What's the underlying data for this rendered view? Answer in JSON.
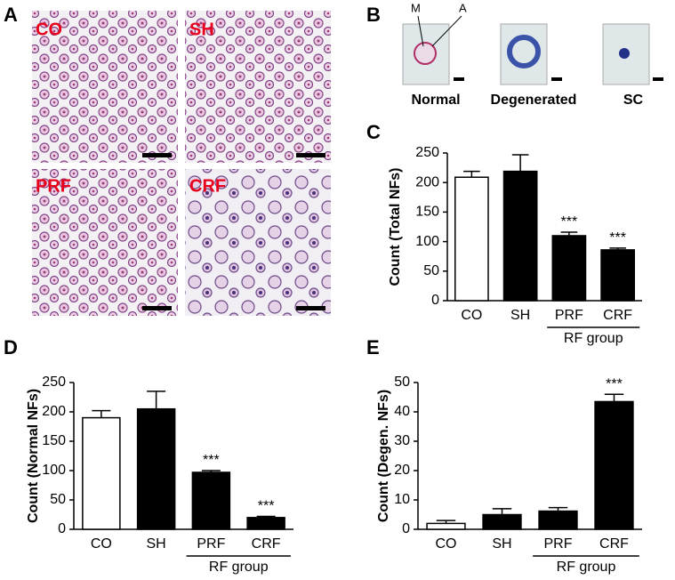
{
  "panel_a": {
    "letter": "A",
    "labels": [
      "CO",
      "SH",
      "PRF",
      "CRF"
    ]
  },
  "panel_b": {
    "letter": "B",
    "pointers": [
      "M",
      "A"
    ],
    "captions": [
      "Normal",
      "Degenerated",
      "SC"
    ]
  },
  "chart_data": [
    {
      "type": "bar",
      "letter": "C",
      "y_label": "Count (Total NFs)",
      "categories": [
        "CO",
        "SH",
        "PRF",
        "CRF"
      ],
      "values": [
        209,
        219,
        110,
        86
      ],
      "errors": [
        10,
        28,
        6,
        3
      ],
      "annotations": [
        null,
        null,
        "***",
        "***"
      ],
      "colors": [
        "#ffffff",
        "#000000",
        "#000000",
        "#000000"
      ],
      "group_label": "RF group",
      "ylim": [
        0,
        250
      ],
      "yticks": [
        0,
        50,
        100,
        150,
        200,
        250
      ]
    },
    {
      "type": "bar",
      "letter": "D",
      "y_label": "Count (Normal NFs)",
      "categories": [
        "CO",
        "SH",
        "PRF",
        "CRF"
      ],
      "values": [
        190,
        205,
        97,
        20
      ],
      "errors": [
        12,
        30,
        3,
        2
      ],
      "annotations": [
        null,
        null,
        "***",
        "***"
      ],
      "colors": [
        "#ffffff",
        "#000000",
        "#000000",
        "#000000"
      ],
      "group_label": "RF group",
      "ylim": [
        0,
        250
      ],
      "yticks": [
        0,
        50,
        100,
        150,
        200,
        250
      ]
    },
    {
      "type": "bar",
      "letter": "E",
      "y_label": "Count (Degen. NFs)",
      "categories": [
        "CO",
        "SH",
        "PRF",
        "CRF"
      ],
      "values": [
        2,
        5,
        6.2,
        43.5
      ],
      "errors": [
        1,
        2,
        1.2,
        2.5
      ],
      "annotations": [
        null,
        null,
        null,
        "***"
      ],
      "colors": [
        "#ffffff",
        "#000000",
        "#000000",
        "#000000"
      ],
      "group_label": "RF group",
      "ylim": [
        0,
        50
      ],
      "yticks": [
        0,
        10,
        20,
        30,
        40,
        50
      ]
    }
  ]
}
